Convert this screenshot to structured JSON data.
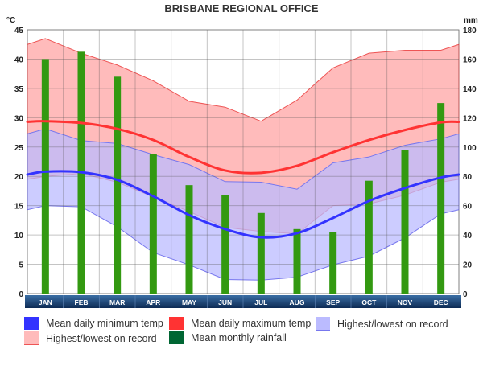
{
  "chart_data": {
    "type": "line",
    "title": "BRISBANE REGIONAL OFFICE",
    "ylabel_left": "°C",
    "ylabel_right": "mm",
    "ylim_left": [
      0,
      45
    ],
    "ylim_right": [
      0,
      180
    ],
    "yticks_left": [
      "0",
      "5",
      "10",
      "15",
      "20",
      "25",
      "30",
      "35",
      "40",
      "45"
    ],
    "yticks_right": [
      "0",
      "20",
      "40",
      "60",
      "80",
      "100",
      "120",
      "140",
      "160",
      "180"
    ],
    "categories": [
      "JAN",
      "FEB",
      "MAR",
      "APR",
      "MAY",
      "JUN",
      "JUL",
      "AUG",
      "SEP",
      "OCT",
      "NOV",
      "DEC"
    ],
    "grid": true,
    "legend_placement": "bottom",
    "series": [
      {
        "name": "Mean daily minimum temp",
        "kind": "line",
        "axis": "left",
        "color": "#3333ff",
        "values": [
          20.8,
          20.7,
          19.4,
          16.6,
          13.4,
          11.0,
          9.6,
          10.3,
          12.9,
          15.8,
          18.0,
          19.8
        ]
      },
      {
        "name": "Mean daily maximum temp",
        "kind": "line",
        "axis": "left",
        "color": "#ff3333",
        "values": [
          29.4,
          29.1,
          28.1,
          26.2,
          23.3,
          21.0,
          20.6,
          21.8,
          24.1,
          26.2,
          27.9,
          29.2
        ]
      },
      {
        "name": "Highest/lowest on record",
        "kind": "band",
        "axis": "left",
        "color": "#bbbbff",
        "edge": "#7777ee",
        "high": [
          28.1,
          26.1,
          25.6,
          23.7,
          22.0,
          19.1,
          19.0,
          17.8,
          22.3,
          23.3,
          25.3,
          26.4
        ],
        "low": [
          15.0,
          14.8,
          11.4,
          7.0,
          4.9,
          2.4,
          2.3,
          2.8,
          4.9,
          6.4,
          9.5,
          13.6
        ]
      },
      {
        "name": "Highest/lowest on record",
        "kind": "band",
        "axis": "left",
        "color": "#ffbbbb",
        "edge": "#ee5555",
        "high": [
          43.5,
          41.0,
          39.0,
          36.3,
          32.8,
          31.8,
          29.4,
          33.0,
          38.5,
          41.0,
          41.5,
          41.5
        ],
        "low": [
          20.0,
          20.5,
          19.0,
          16.5,
          14.0,
          11.3,
          10.6,
          10.2,
          15.0,
          15.3,
          16.8,
          19.0
        ]
      },
      {
        "name": "Mean monthly rainfall",
        "kind": "bar",
        "axis": "right",
        "color": "#339911",
        "legend_color": "#006633",
        "values": [
          160,
          165,
          148,
          95,
          74,
          67,
          55,
          44,
          42,
          77,
          98,
          130
        ]
      }
    ]
  }
}
